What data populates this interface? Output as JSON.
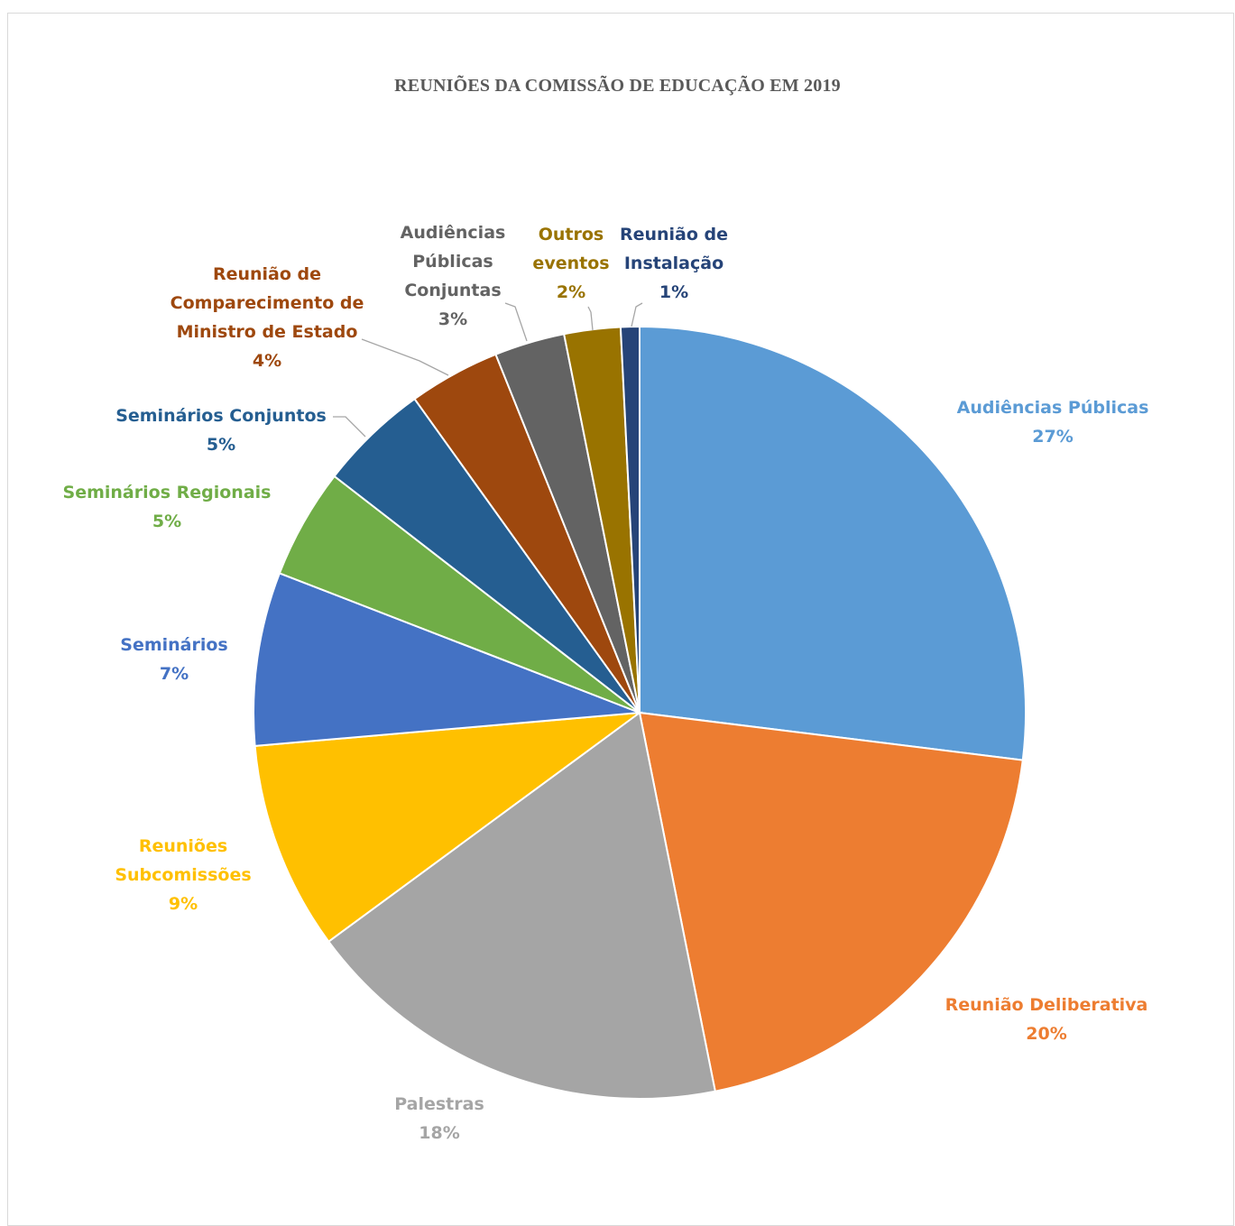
{
  "chart_data": {
    "type": "pie",
    "title": "REUNIÕES DA COMISSÃO DE EDUCAÇÃO EM 2019",
    "label_format": "category-and-percent",
    "slices": [
      {
        "name": "Audiências Públicas",
        "label_lines": [
          "Audiências Públicas"
        ],
        "percent_text": "27%",
        "value": 27.5,
        "color": "#5B9BD5"
      },
      {
        "name": "Reunião Deliberativa",
        "label_lines": [
          "Reunião Deliberativa"
        ],
        "percent_text": "20%",
        "value": 20.3,
        "color": "#ED7D31"
      },
      {
        "name": "Palestras",
        "label_lines": [
          "Palestras"
        ],
        "percent_text": "18%",
        "value": 18.4,
        "color": "#A5A5A5"
      },
      {
        "name": "Reuniões Subcomissões",
        "label_lines": [
          "Reuniões",
          "Subcomissões"
        ],
        "percent_text": "9%",
        "value": 8.9,
        "color": "#FFC000"
      },
      {
        "name": "Seminários",
        "label_lines": [
          "Seminários"
        ],
        "percent_text": "7%",
        "value": 7.4,
        "color": "#4472C4"
      },
      {
        "name": "Seminários Regionais",
        "label_lines": [
          "Seminários Regionais"
        ],
        "percent_text": "5%",
        "value": 4.7,
        "color": "#70AD47"
      },
      {
        "name": "Seminários Conjuntos",
        "label_lines": [
          "Seminários Conjuntos"
        ],
        "percent_text": "5%",
        "value": 4.7,
        "color": "#255E91"
      },
      {
        "name": "Reunião de Comparecimento de Ministro de Estado",
        "label_lines": [
          "Reunião de",
          "Comparecimento de",
          "Ministro de Estado"
        ],
        "percent_text": "4%",
        "value": 3.9,
        "color": "#9E480E"
      },
      {
        "name": "Audiências Públicas Conjuntas",
        "label_lines": [
          "Audiências",
          "Públicas",
          "Conjuntas"
        ],
        "percent_text": "3%",
        "value": 3.0,
        "color": "#636363"
      },
      {
        "name": "Outros eventos",
        "label_lines": [
          "Outros",
          "eventos"
        ],
        "percent_text": "2%",
        "value": 2.4,
        "color": "#997300"
      },
      {
        "name": "Reunião de Instalação",
        "label_lines": [
          "Reunião de",
          "Instalação"
        ],
        "percent_text": "1%",
        "value": 0.8,
        "color": "#264478"
      }
    ]
  }
}
